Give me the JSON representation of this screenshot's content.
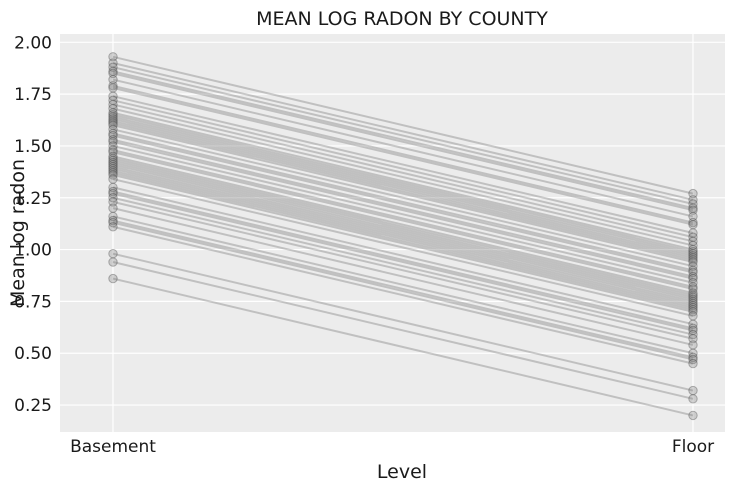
{
  "chart_data": {
    "type": "line",
    "title": "MEAN LOG RADON BY COUNTY",
    "xlabel": "Level",
    "ylabel": "Mean log radon",
    "categories": [
      "Basement",
      "Floor"
    ],
    "y_ticks": [
      "0.25",
      "0.50",
      "0.75",
      "1.00",
      "1.25",
      "1.50",
      "1.75",
      "2.00"
    ],
    "ylim": [
      0.12,
      2.04
    ],
    "grid": true,
    "series_color": "#7f7f7f",
    "background": "#ececec",
    "series": [
      {
        "values": [
          1.93,
          1.27
        ]
      },
      {
        "values": [
          1.9,
          1.24
        ]
      },
      {
        "values": [
          1.88,
          1.22
        ]
      },
      {
        "values": [
          1.86,
          1.2
        ]
      },
      {
        "values": [
          1.85,
          1.19
        ]
      },
      {
        "values": [
          1.82,
          1.16
        ]
      },
      {
        "values": [
          1.79,
          1.13
        ]
      },
      {
        "values": [
          1.78,
          1.12
        ]
      },
      {
        "values": [
          1.74,
          1.08
        ]
      },
      {
        "values": [
          1.72,
          1.06
        ]
      },
      {
        "values": [
          1.7,
          1.04
        ]
      },
      {
        "values": [
          1.68,
          1.02
        ]
      },
      {
        "values": [
          1.66,
          1.0
        ]
      },
      {
        "values": [
          1.65,
          0.99
        ]
      },
      {
        "values": [
          1.64,
          0.98
        ]
      },
      {
        "values": [
          1.63,
          0.97
        ]
      },
      {
        "values": [
          1.62,
          0.96
        ]
      },
      {
        "values": [
          1.61,
          0.95
        ]
      },
      {
        "values": [
          1.6,
          0.94
        ]
      },
      {
        "values": [
          1.58,
          0.92
        ]
      },
      {
        "values": [
          1.56,
          0.9
        ]
      },
      {
        "values": [
          1.55,
          0.89
        ]
      },
      {
        "values": [
          1.53,
          0.87
        ]
      },
      {
        "values": [
          1.52,
          0.86
        ]
      },
      {
        "values": [
          1.5,
          0.84
        ]
      },
      {
        "values": [
          1.48,
          0.82
        ]
      },
      {
        "values": [
          1.47,
          0.81
        ]
      },
      {
        "values": [
          1.45,
          0.79
        ]
      },
      {
        "values": [
          1.44,
          0.78
        ]
      },
      {
        "values": [
          1.43,
          0.77
        ]
      },
      {
        "values": [
          1.42,
          0.76
        ]
      },
      {
        "values": [
          1.41,
          0.75
        ]
      },
      {
        "values": [
          1.4,
          0.74
        ]
      },
      {
        "values": [
          1.39,
          0.73
        ]
      },
      {
        "values": [
          1.38,
          0.72
        ]
      },
      {
        "values": [
          1.37,
          0.71
        ]
      },
      {
        "values": [
          1.36,
          0.7
        ]
      },
      {
        "values": [
          1.34,
          0.68
        ]
      },
      {
        "values": [
          1.3,
          0.64
        ]
      },
      {
        "values": [
          1.28,
          0.62
        ]
      },
      {
        "values": [
          1.27,
          0.61
        ]
      },
      {
        "values": [
          1.25,
          0.59
        ]
      },
      {
        "values": [
          1.23,
          0.57
        ]
      },
      {
        "values": [
          1.2,
          0.54
        ]
      },
      {
        "values": [
          1.16,
          0.5
        ]
      },
      {
        "values": [
          1.14,
          0.48
        ]
      },
      {
        "values": [
          1.13,
          0.47
        ]
      },
      {
        "values": [
          1.11,
          0.45
        ]
      },
      {
        "values": [
          0.98,
          0.32
        ]
      },
      {
        "values": [
          0.94,
          0.28
        ]
      },
      {
        "values": [
          0.86,
          0.2
        ]
      }
    ]
  }
}
